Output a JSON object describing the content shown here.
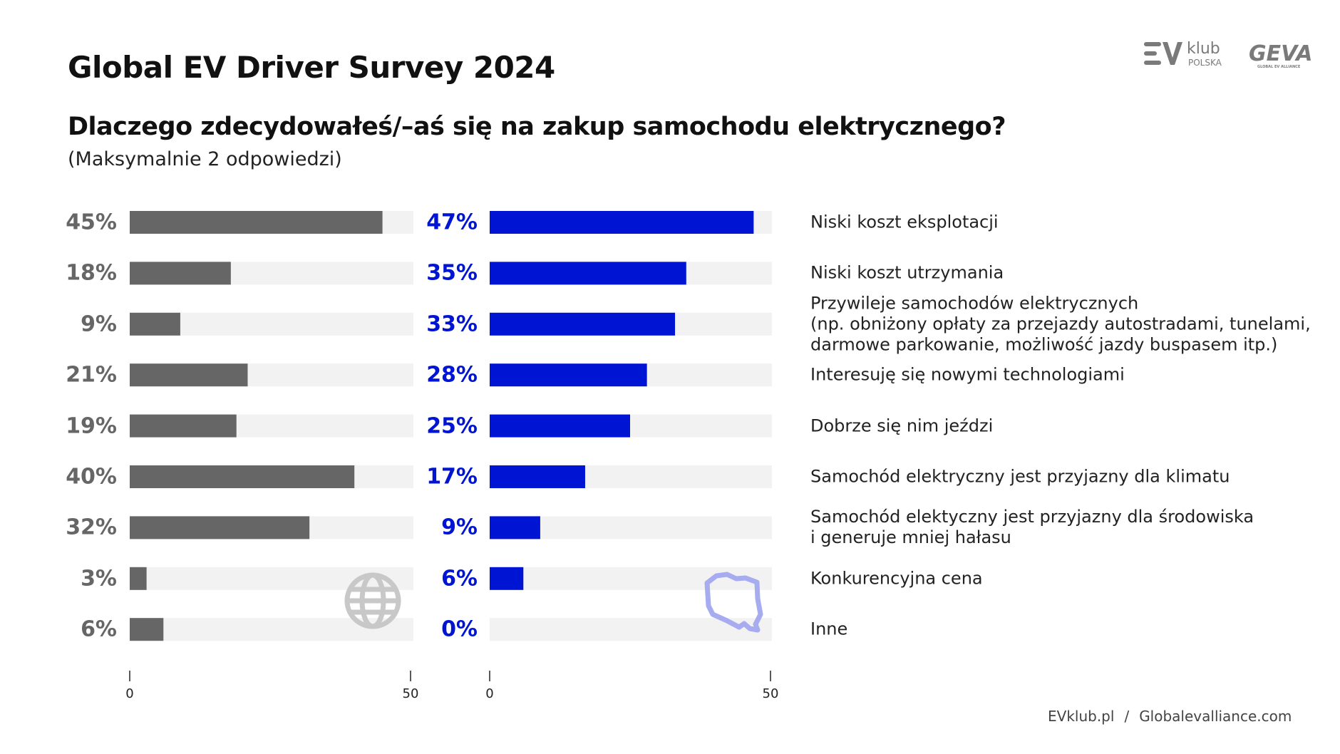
{
  "header": {
    "title": "Global EV Driver Survey 2024",
    "question": "Dlaczego zdecydowałeś/–aś się na zakup samochodu elektrycznego?",
    "note": "(Maksymalnie 2 odpowiedzi)",
    "logos": {
      "evklub": "EV klub POLSKA",
      "geva": "GEVA GLOBAL EV ALLIANCE"
    }
  },
  "chart_data": {
    "type": "bar",
    "orientation": "horizontal",
    "categories": [
      "Niski koszt eksplotacji",
      "Niski koszt utrzymania",
      "Przywileje samochodów elektrycznych\n(np. obniżony opłaty za przejazdy autostradami, tunelami,\ndarmowe parkowanie, możliwość jazdy buspasem itp.)",
      "Interesuję się nowymi technologiami",
      "Dobrze się nim jeździ",
      "Samochód elektryczny jest przyjazny dla klimatu",
      "Samochód elektyczny jest przyjazny dla środowiska\ni generuje mniej hałasu",
      "Konkurencyjna cena",
      "Inne"
    ],
    "series": [
      {
        "icon": "globe-icon",
        "color": "#666666",
        "values": [
          45,
          18,
          9,
          21,
          19,
          40,
          32,
          3,
          6
        ],
        "labels": [
          "45%",
          "18%",
          "9%",
          "21%",
          "19%",
          "40%",
          "32%",
          "3%",
          "6%"
        ]
      },
      {
        "icon": "poland-map-icon",
        "color": "#0014d4",
        "values": [
          47,
          35,
          33,
          28,
          25,
          17,
          9,
          6,
          0
        ],
        "labels": [
          "47%",
          "35%",
          "33%",
          "28%",
          "25%",
          "17%",
          "9%",
          "6%",
          "0%"
        ]
      }
    ],
    "xlim": [
      0,
      50
    ],
    "xticks": [
      "0",
      "50"
    ],
    "track_color": "#f2f2f2",
    "grid": false
  },
  "footer": {
    "link1": "EVklub.pl",
    "separator": "/",
    "link2": "Globalevalliance.com"
  }
}
